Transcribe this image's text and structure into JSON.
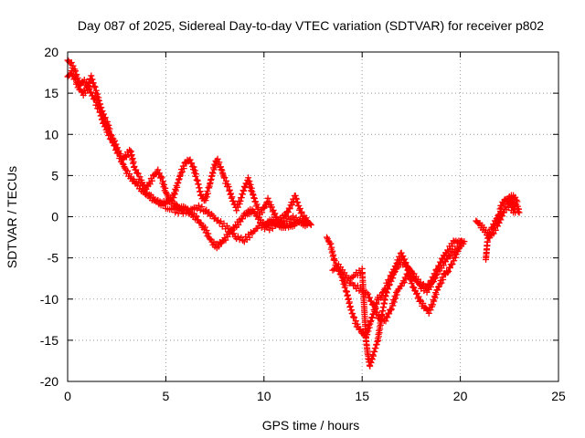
{
  "chart_data": {
    "type": "scatter",
    "title": "Day 087 of 2025, Sidereal Day-to-day VTEC variation (SDTVAR) for receiver p802",
    "xlabel": "GPS time / hours",
    "ylabel": "SDTVAR / TECUs",
    "xlim": [
      0,
      25
    ],
    "ylim": [
      -20,
      20
    ],
    "xticks": [
      0,
      5,
      10,
      15,
      20,
      25
    ],
    "yticks": [
      -20,
      -15,
      -10,
      -5,
      0,
      5,
      10,
      15,
      20
    ],
    "grid": true,
    "marker": "plus",
    "color": "#ff0000",
    "series": [
      {
        "trace_a": [
          [
            0.0,
            19.0
          ],
          [
            0.2,
            18.5
          ],
          [
            0.4,
            17.5
          ],
          [
            0.6,
            16.0
          ],
          [
            0.8,
            16.5
          ],
          [
            1.0,
            16.0
          ],
          [
            1.2,
            15.0
          ],
          [
            1.4,
            14.0
          ],
          [
            1.6,
            13.0
          ],
          [
            1.8,
            11.5
          ],
          [
            2.0,
            10.5
          ],
          [
            2.2,
            9.5
          ],
          [
            2.4,
            8.5
          ],
          [
            2.6,
            7.5
          ],
          [
            2.8,
            6.5
          ],
          [
            3.0,
            5.5
          ],
          [
            3.2,
            4.8
          ],
          [
            3.4,
            4.2
          ],
          [
            3.6,
            3.8
          ],
          [
            3.8,
            3.2
          ],
          [
            4.0,
            2.8
          ],
          [
            4.2,
            2.5
          ],
          [
            4.4,
            2.0
          ],
          [
            4.6,
            1.8
          ],
          [
            4.8,
            1.5
          ],
          [
            5.0,
            1.8
          ],
          [
            5.2,
            2.0
          ],
          [
            5.4,
            1.5
          ],
          [
            5.6,
            1.2
          ],
          [
            5.8,
            1.0
          ],
          [
            6.0,
            1.0
          ],
          [
            6.2,
            0.5
          ],
          [
            6.4,
            0.2
          ],
          [
            6.6,
            -0.3
          ],
          [
            6.8,
            -1.0
          ],
          [
            7.0,
            -1.5
          ],
          [
            7.2,
            -2.5
          ],
          [
            7.4,
            -3.2
          ],
          [
            7.6,
            -3.6
          ],
          [
            7.8,
            -3.2
          ],
          [
            8.0,
            -2.8
          ],
          [
            8.2,
            -2.0
          ],
          [
            8.4,
            -1.5
          ],
          [
            8.6,
            -1.0
          ],
          [
            8.8,
            -0.5
          ],
          [
            9.0,
            0.2
          ],
          [
            9.2,
            0.5
          ],
          [
            9.4,
            0.8
          ],
          [
            9.6,
            0.3
          ],
          [
            9.8,
            -0.5
          ],
          [
            10.0,
            -1.0
          ],
          [
            10.2,
            -0.8
          ],
          [
            10.4,
            -0.5
          ],
          [
            10.6,
            -0.8
          ],
          [
            10.8,
            -1.0
          ],
          [
            11.0,
            -1.2
          ],
          [
            11.2,
            -1.2
          ],
          [
            11.4,
            -1.0
          ],
          [
            11.6,
            -0.8
          ],
          [
            11.8,
            -0.5
          ],
          [
            12.0,
            -0.8
          ],
          [
            12.2,
            -1.0
          ]
        ],
        "trace_b": [
          [
            0.0,
            17.0
          ],
          [
            0.2,
            17.5
          ],
          [
            0.4,
            16.5
          ],
          [
            0.6,
            15.5
          ],
          [
            0.8,
            15.0
          ],
          [
            1.0,
            15.5
          ],
          [
            1.2,
            17.0
          ],
          [
            1.4,
            15.5
          ],
          [
            1.6,
            14.0
          ],
          [
            1.8,
            12.5
          ],
          [
            2.0,
            11.5
          ],
          [
            2.2,
            10.0
          ],
          [
            2.4,
            9.0
          ],
          [
            2.6,
            7.8
          ],
          [
            2.8,
            7.0
          ],
          [
            3.0,
            7.5
          ],
          [
            3.2,
            8.0
          ],
          [
            3.4,
            6.0
          ],
          [
            3.6,
            5.0
          ],
          [
            3.8,
            4.0
          ],
          [
            4.0,
            3.5
          ],
          [
            4.2,
            4.2
          ],
          [
            4.4,
            5.0
          ],
          [
            4.6,
            5.5
          ],
          [
            4.8,
            4.5
          ],
          [
            5.0,
            3.0
          ],
          [
            5.2,
            2.0
          ],
          [
            5.4,
            2.5
          ],
          [
            5.6,
            4.0
          ],
          [
            5.8,
            5.5
          ],
          [
            6.0,
            6.5
          ],
          [
            6.2,
            7.0
          ],
          [
            6.4,
            6.0
          ],
          [
            6.6,
            4.5
          ],
          [
            6.8,
            2.5
          ],
          [
            7.0,
            2.0
          ],
          [
            7.2,
            3.5
          ],
          [
            7.4,
            5.5
          ],
          [
            7.6,
            7.0
          ],
          [
            7.8,
            6.0
          ],
          [
            8.0,
            4.5
          ],
          [
            8.2,
            3.5
          ],
          [
            8.4,
            2.0
          ],
          [
            8.6,
            1.0
          ],
          [
            8.8,
            2.0
          ],
          [
            9.0,
            3.5
          ],
          [
            9.2,
            4.5
          ],
          [
            9.4,
            3.0
          ],
          [
            9.6,
            1.5
          ],
          [
            9.8,
            0.5
          ],
          [
            10.0,
            1.0
          ],
          [
            10.2,
            2.0
          ],
          [
            10.4,
            1.0
          ],
          [
            10.6,
            0.0
          ],
          [
            10.8,
            -0.5
          ],
          [
            11.0,
            0.0
          ],
          [
            11.2,
            0.5
          ],
          [
            11.4,
            1.5
          ],
          [
            11.6,
            2.5
          ],
          [
            11.8,
            1.0
          ],
          [
            12.0,
            0.0
          ],
          [
            12.2,
            -0.5
          ],
          [
            12.4,
            -1.0
          ]
        ],
        "trace_c": [
          [
            5.0,
            1.0
          ],
          [
            5.4,
            0.8
          ],
          [
            5.8,
            0.5
          ],
          [
            6.2,
            0.8
          ],
          [
            6.6,
            1.2
          ],
          [
            7.0,
            0.8
          ],
          [
            7.4,
            0.0
          ],
          [
            7.8,
            -0.8
          ],
          [
            8.2,
            -1.5
          ],
          [
            8.6,
            -2.5
          ],
          [
            9.0,
            -2.8
          ],
          [
            9.4,
            -2.0
          ],
          [
            9.8,
            -1.0
          ],
          [
            10.2,
            -1.5
          ],
          [
            10.6,
            -1.0
          ],
          [
            11.0,
            -0.5
          ],
          [
            11.4,
            0.0
          ],
          [
            11.8,
            -0.5
          ]
        ],
        "trace_d": [
          [
            13.2,
            -2.5
          ],
          [
            13.4,
            -3.5
          ],
          [
            13.6,
            -5.5
          ],
          [
            13.8,
            -6.5
          ],
          [
            14.0,
            -7.5
          ],
          [
            14.2,
            -9.0
          ],
          [
            14.4,
            -11.0
          ],
          [
            14.6,
            -12.5
          ],
          [
            14.8,
            -13.5
          ],
          [
            15.0,
            -14.0
          ],
          [
            15.2,
            -14.5
          ],
          [
            15.4,
            -13.0
          ],
          [
            15.6,
            -11.5
          ],
          [
            15.8,
            -10.0
          ],
          [
            16.0,
            -9.5
          ],
          [
            16.2,
            -8.5
          ],
          [
            16.4,
            -7.5
          ],
          [
            16.6,
            -6.5
          ],
          [
            16.8,
            -5.5
          ],
          [
            17.0,
            -4.5
          ],
          [
            17.2,
            -5.5
          ],
          [
            17.4,
            -7.0
          ],
          [
            17.6,
            -8.5
          ],
          [
            17.8,
            -9.5
          ],
          [
            18.0,
            -10.5
          ],
          [
            18.2,
            -11.0
          ],
          [
            18.4,
            -11.5
          ],
          [
            18.6,
            -10.5
          ],
          [
            18.8,
            -9.0
          ],
          [
            19.0,
            -8.0
          ],
          [
            19.2,
            -7.0
          ],
          [
            19.4,
            -6.5
          ],
          [
            19.6,
            -5.5
          ],
          [
            19.8,
            -4.5
          ],
          [
            20.0,
            -3.5
          ],
          [
            20.2,
            -3.0
          ]
        ],
        "trace_e": [
          [
            13.5,
            -6.5
          ],
          [
            13.8,
            -6.0
          ],
          [
            14.1,
            -7.0
          ],
          [
            14.4,
            -8.0
          ],
          [
            14.7,
            -8.5
          ],
          [
            15.0,
            -9.0
          ],
          [
            15.3,
            -9.5
          ],
          [
            15.6,
            -11.0
          ],
          [
            15.9,
            -12.5
          ],
          [
            16.2,
            -12.5
          ],
          [
            16.5,
            -11.0
          ],
          [
            16.8,
            -9.0
          ],
          [
            17.1,
            -8.0
          ],
          [
            17.4,
            -6.5
          ],
          [
            17.7,
            -7.5
          ],
          [
            18.0,
            -8.5
          ],
          [
            18.3,
            -9.0
          ],
          [
            18.6,
            -8.0
          ],
          [
            18.9,
            -6.5
          ],
          [
            19.2,
            -5.5
          ],
          [
            19.5,
            -4.5
          ],
          [
            19.8,
            -4.0
          ],
          [
            20.1,
            -3.0
          ]
        ],
        "trace_f": [
          [
            14.4,
            -7.5
          ],
          [
            14.7,
            -7.0
          ],
          [
            15.0,
            -6.5
          ],
          [
            15.2,
            -15.0
          ],
          [
            15.3,
            -17.0
          ],
          [
            15.4,
            -18.0
          ],
          [
            15.6,
            -16.5
          ],
          [
            15.8,
            -15.0
          ],
          [
            16.0,
            -12.0
          ],
          [
            16.2,
            -9.5
          ],
          [
            16.4,
            -8.0
          ],
          [
            16.6,
            -7.0
          ],
          [
            16.8,
            -6.0
          ],
          [
            17.0,
            -5.5
          ],
          [
            17.3,
            -6.0
          ],
          [
            17.6,
            -7.0
          ],
          [
            17.9,
            -8.0
          ],
          [
            18.2,
            -8.5
          ],
          [
            18.5,
            -8.0
          ],
          [
            18.8,
            -6.5
          ],
          [
            19.1,
            -5.0
          ],
          [
            19.4,
            -4.0
          ],
          [
            19.7,
            -3.0
          ],
          [
            20.0,
            -3.0
          ]
        ],
        "trace_g": [
          [
            21.3,
            -5.2
          ],
          [
            21.4,
            -2.5
          ],
          [
            21.6,
            -1.5
          ],
          [
            21.8,
            -0.5
          ],
          [
            22.0,
            0.5
          ],
          [
            22.1,
            1.5
          ],
          [
            22.3,
            2.0
          ],
          [
            22.5,
            2.2
          ],
          [
            22.7,
            2.5
          ],
          [
            22.9,
            2.0
          ],
          [
            22.6,
            1.0
          ],
          [
            22.8,
            0.5
          ]
        ],
        "trace_h": [
          [
            20.8,
            -0.5
          ],
          [
            21.0,
            -1.0
          ],
          [
            21.2,
            -1.5
          ],
          [
            21.5,
            -2.5
          ],
          [
            21.7,
            -1.8
          ],
          [
            21.9,
            -1.0
          ],
          [
            22.1,
            0.0
          ],
          [
            22.3,
            1.0
          ],
          [
            22.5,
            1.5
          ],
          [
            22.7,
            1.8
          ],
          [
            22.9,
            1.2
          ],
          [
            23.0,
            0.5
          ]
        ]
      }
    ]
  }
}
